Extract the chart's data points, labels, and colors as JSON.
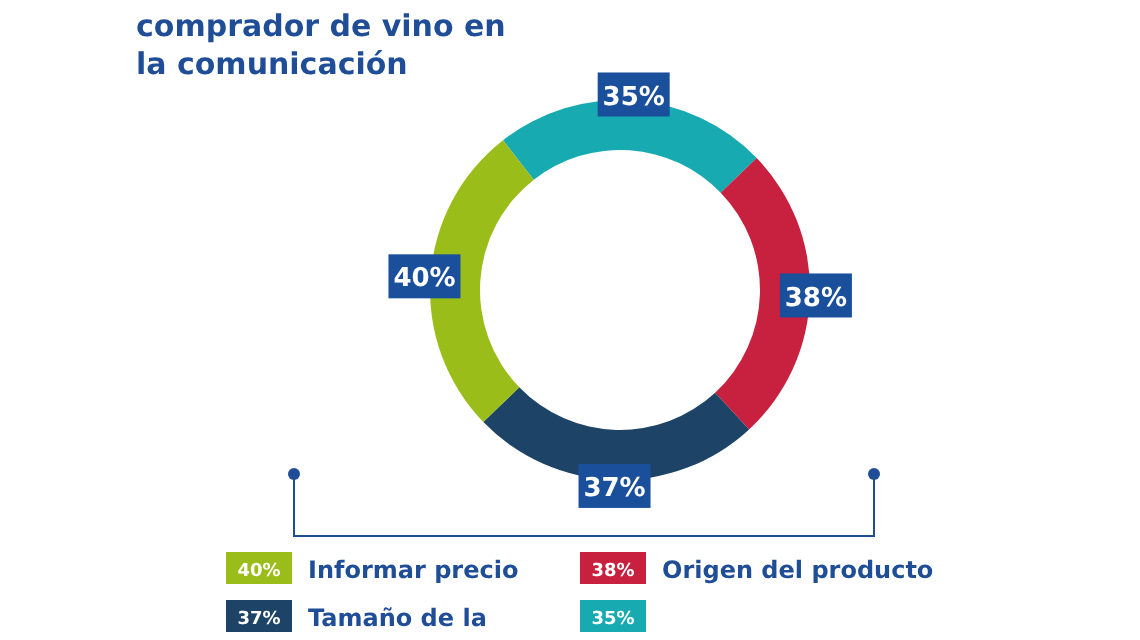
{
  "chart_data": {
    "type": "donut",
    "title": "comprador de vino en\nla comunicación",
    "categories": [
      null,
      "Origen del producto",
      "Tamaño de la",
      "Informar precio"
    ],
    "values": [
      35,
      38,
      37,
      40
    ],
    "colors": [
      "#17aab0",
      "#c8203f",
      "#1d4466",
      "#9bbd1a"
    ],
    "value_labels": [
      "35%",
      "38%",
      "37%",
      "40%"
    ],
    "legend": "bottom"
  }
}
